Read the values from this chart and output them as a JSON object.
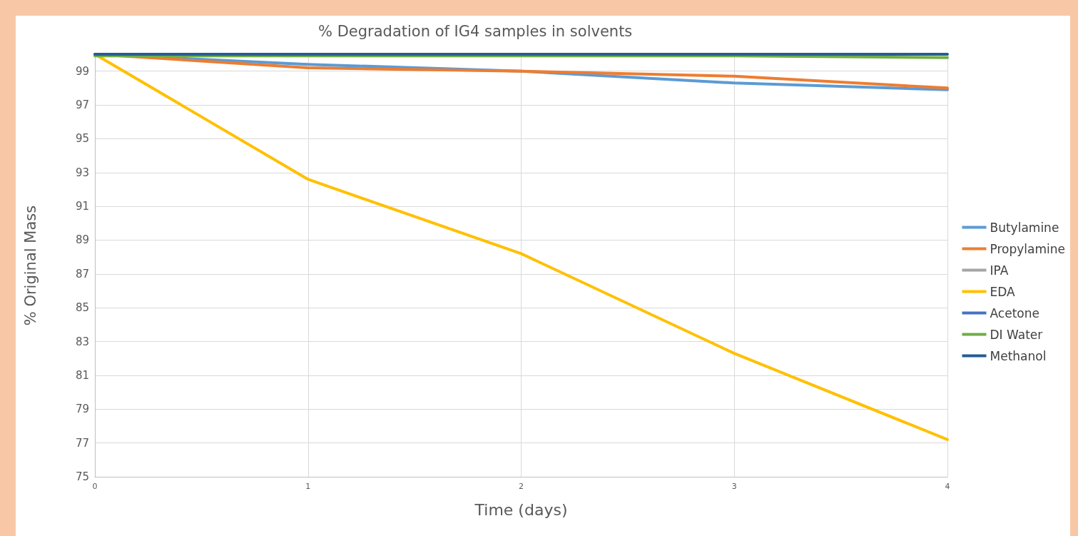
{
  "chart_data": {
    "type": "line",
    "title": "% Degradation of IG4 samples in solvents",
    "xlabel": "Time (days)",
    "ylabel": "% Original Mass",
    "x": [
      0,
      1,
      2,
      3,
      4
    ],
    "xlim": [
      0,
      4
    ],
    "xticks": [
      0,
      1,
      2,
      3,
      4
    ],
    "ylim": [
      75,
      100
    ],
    "yticks": [
      75,
      77,
      79,
      81,
      83,
      85,
      87,
      89,
      91,
      93,
      95,
      97,
      99
    ],
    "grid": true,
    "legend": "right",
    "marker": "none",
    "line_style": "solid",
    "series": [
      {
        "name": "Butylamine",
        "color": "#5b9bd5",
        "values": [
          100,
          99.4,
          99.0,
          98.3,
          97.9
        ]
      },
      {
        "name": "Propylamine",
        "color": "#ed7d31",
        "values": [
          100,
          99.2,
          99.0,
          98.7,
          98.0
        ]
      },
      {
        "name": "IPA",
        "color": "#a5a5a5",
        "values": [
          null,
          null,
          null,
          null,
          null
        ]
      },
      {
        "name": "EDA",
        "color": "#ffc000",
        "values": [
          100,
          92.6,
          88.2,
          82.3,
          77.2
        ]
      },
      {
        "name": "Acetone",
        "color": "#4472c4",
        "values": [
          null,
          null,
          null,
          null,
          null
        ]
      },
      {
        "name": "DI Water",
        "color": "#70ad47",
        "values": [
          99.9,
          99.9,
          99.9,
          99.9,
          99.8
        ]
      },
      {
        "name": "Methanol",
        "color": "#255e91",
        "values": [
          100,
          100,
          100,
          100,
          100
        ]
      }
    ]
  }
}
